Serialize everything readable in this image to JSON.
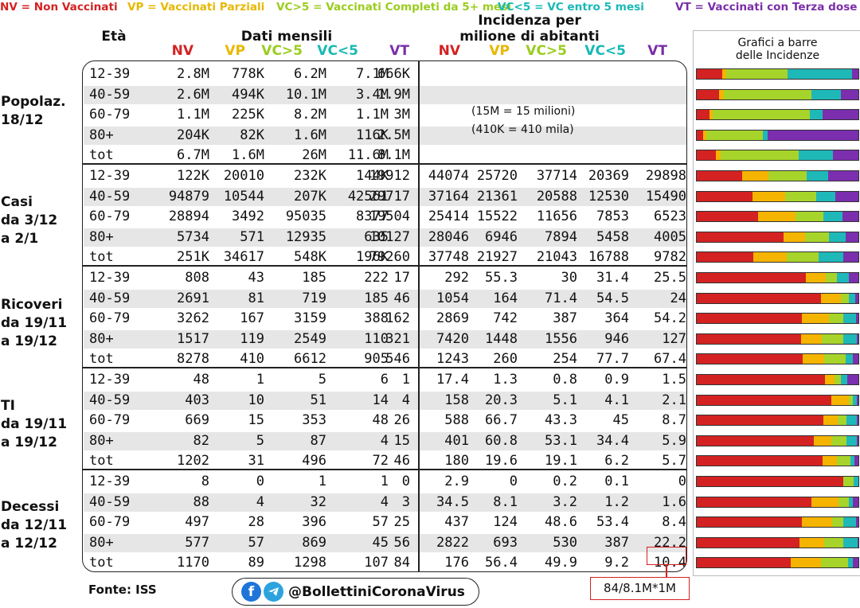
{
  "legend": {
    "nv": "NV = Non Vaccinati",
    "vp": "VP = Vaccinati Parziali",
    "vc5": "VC>5 = Vaccinati Completi da 5+ mesi",
    "vcl": "VC<5 = VC entro 5 mesi",
    "vt": "VT = Vaccinati con Terza dose"
  },
  "headers": {
    "eta": "Età",
    "dati_mensili": "Dati mensili",
    "incidenza_1": "Incidenza per",
    "incidenza_2": "milione di abitanti",
    "cols": [
      "NV",
      "VP",
      "VC>5",
      "VC<5",
      "VT"
    ],
    "bar_title_1": "Grafici a barre",
    "bar_title_2": "delle Incidenze"
  },
  "colors": {
    "nv": "#d42222",
    "vp": "#f5b400",
    "vc5": "#a7d42a",
    "vcl": "#1fb8b8",
    "vt": "#7b2fae"
  },
  "notes": {
    "n1": "(15M = 15 milioni)",
    "n2": "(410K = 410 mila)"
  },
  "groups": [
    {
      "label": [
        "Popolaz.",
        "18/12"
      ],
      "rows": [
        {
          "age": "12-39",
          "data": [
            "2.8M",
            "778K",
            "6.2M",
            "7.1M",
            "666K"
          ],
          "inc": [],
          "bar": [
            0.16,
            0.02,
            0.38,
            0.4,
            0.04
          ]
        },
        {
          "age": "40-59",
          "data": [
            "2.6M",
            "494K",
            "10.1M",
            "3.4M",
            "1.9M"
          ],
          "inc": [],
          "bar": [
            0.14,
            0.03,
            0.54,
            0.18,
            0.11
          ]
        },
        {
          "age": "60-79",
          "data": [
            "1.1M",
            "225K",
            "8.2M",
            "1.1M",
            "3M"
          ],
          "inc": [],
          "bar": [
            0.08,
            0.02,
            0.6,
            0.08,
            0.22
          ]
        },
        {
          "age": "80+",
          "data": [
            "204K",
            "82K",
            "1.6M",
            "116K",
            "2.5M"
          ],
          "inc": [],
          "bar": [
            0.04,
            0.02,
            0.35,
            0.03,
            0.56
          ]
        },
        {
          "age": "tot",
          "data": [
            "6.7M",
            "1.6M",
            "26M",
            "11.6M",
            "8.1M"
          ],
          "inc": [],
          "bar": [
            0.12,
            0.03,
            0.48,
            0.21,
            0.16
          ]
        }
      ]
    },
    {
      "label": [
        "Casi",
        "da 3/12",
        "a  2/1"
      ],
      "rows": [
        {
          "age": "12-39",
          "data": [
            "122K",
            "20010",
            "232K",
            "144K",
            "19912"
          ],
          "inc": [
            "44074",
            "25720",
            "37714",
            "20369",
            "29898"
          ],
          "bar": [
            44074,
            25720,
            37714,
            20369,
            29898
          ]
        },
        {
          "age": "40-59",
          "data": [
            "94879",
            "10544",
            "207K",
            "42561",
            "29717"
          ],
          "inc": [
            "37164",
            "21361",
            "20588",
            "12530",
            "15490"
          ],
          "bar": [
            37164,
            21361,
            20588,
            12530,
            15490
          ]
        },
        {
          "age": "60-79",
          "data": [
            "28894",
            "3492",
            "95035",
            "8377",
            "19504"
          ],
          "inc": [
            "25414",
            "15522",
            "11656",
            "7853",
            "6523"
          ],
          "bar": [
            25414,
            15522,
            11656,
            7853,
            6523
          ]
        },
        {
          "age": "80+",
          "data": [
            "5734",
            "571",
            "12935",
            "635",
            "10127"
          ],
          "inc": [
            "28046",
            "6946",
            "7894",
            "5458",
            "4005"
          ],
          "bar": [
            28046,
            6946,
            7894,
            5458,
            4005
          ]
        },
        {
          "age": "tot",
          "data": [
            "251K",
            "34617",
            "548K",
            "196K",
            "79260"
          ],
          "inc": [
            "37748",
            "21927",
            "21043",
            "16788",
            "9782"
          ],
          "bar": [
            37748,
            21927,
            21043,
            16788,
            9782
          ]
        }
      ]
    },
    {
      "label": [
        "Ricoveri",
        "da 19/11",
        "a   19/12"
      ],
      "rows": [
        {
          "age": "12-39",
          "data": [
            "808",
            "43",
            "185",
            "222",
            "17"
          ],
          "inc": [
            "292",
            "55.3",
            "30",
            "31.4",
            "25.5"
          ],
          "bar": [
            292,
            55.3,
            30,
            31.4,
            25.5
          ]
        },
        {
          "age": "40-59",
          "data": [
            "2691",
            "81",
            "719",
            "185",
            "46"
          ],
          "inc": [
            "1054",
            "164",
            "71.4",
            "54.5",
            "24"
          ],
          "bar": [
            1054,
            164,
            71.4,
            54.5,
            24
          ]
        },
        {
          "age": "60-79",
          "data": [
            "3262",
            "167",
            "3159",
            "388",
            "162"
          ],
          "inc": [
            "2869",
            "742",
            "387",
            "364",
            "54.2"
          ],
          "bar": [
            2869,
            742,
            387,
            364,
            54.2
          ]
        },
        {
          "age": "80+",
          "data": [
            "1517",
            "119",
            "2549",
            "110",
            "321"
          ],
          "inc": [
            "7420",
            "1448",
            "1556",
            "946",
            "127"
          ],
          "bar": [
            7420,
            1448,
            1556,
            946,
            127
          ]
        },
        {
          "age": "tot",
          "data": [
            "8278",
            "410",
            "6612",
            "905",
            "546"
          ],
          "inc": [
            "1243",
            "260",
            "254",
            "77.7",
            "67.4"
          ],
          "bar": [
            1243,
            260,
            254,
            77.7,
            67.4
          ]
        }
      ]
    },
    {
      "label": [
        "TI",
        "da 19/11",
        "a   19/12"
      ],
      "rows": [
        {
          "age": "12-39",
          "data": [
            "48",
            "1",
            "5",
            "6",
            "1"
          ],
          "inc": [
            "17.4",
            "1.3",
            "0.8",
            "0.9",
            "1.5"
          ],
          "bar": [
            17.4,
            1.3,
            0.8,
            0.9,
            1.5
          ]
        },
        {
          "age": "40-59",
          "data": [
            "403",
            "10",
            "51",
            "14",
            "4"
          ],
          "inc": [
            "158",
            "20.3",
            "5.1",
            "4.1",
            "2.1"
          ],
          "bar": [
            158,
            20.3,
            5.1,
            4.1,
            2.1
          ]
        },
        {
          "age": "60-79",
          "data": [
            "669",
            "15",
            "353",
            "48",
            "26"
          ],
          "inc": [
            "588",
            "66.7",
            "43.3",
            "45",
            "8.7"
          ],
          "bar": [
            588,
            66.7,
            43.3,
            45,
            8.7
          ]
        },
        {
          "age": "80+",
          "data": [
            "82",
            "5",
            "87",
            "4",
            "15"
          ],
          "inc": [
            "401",
            "60.8",
            "53.1",
            "34.4",
            "5.9"
          ],
          "bar": [
            401,
            60.8,
            53.1,
            34.4,
            5.9
          ]
        },
        {
          "age": "tot",
          "data": [
            "1202",
            "31",
            "496",
            "72",
            "46"
          ],
          "inc": [
            "180",
            "19.6",
            "19.1",
            "6.2",
            "5.7"
          ],
          "bar": [
            180,
            19.6,
            19.1,
            6.2,
            5.7
          ]
        }
      ]
    },
    {
      "label": [
        "Decessi",
        "da 12/11",
        "a   12/12"
      ],
      "rows": [
        {
          "age": "12-39",
          "data": [
            "8",
            "0",
            "1",
            "1",
            "0"
          ],
          "inc": [
            "2.9",
            "0",
            "0.2",
            "0.1",
            "0"
          ],
          "bar": [
            2.9,
            0,
            0.2,
            0.1,
            0
          ]
        },
        {
          "age": "40-59",
          "data": [
            "88",
            "4",
            "32",
            "4",
            "3"
          ],
          "inc": [
            "34.5",
            "8.1",
            "3.2",
            "1.2",
            "1.6"
          ],
          "bar": [
            34.5,
            8.1,
            3.2,
            1.2,
            1.6
          ]
        },
        {
          "age": "60-79",
          "data": [
            "497",
            "28",
            "396",
            "57",
            "25"
          ],
          "inc": [
            "437",
            "124",
            "48.6",
            "53.4",
            "8.4"
          ],
          "bar": [
            437,
            124,
            48.6,
            53.4,
            8.4
          ]
        },
        {
          "age": "80+",
          "data": [
            "577",
            "57",
            "869",
            "45",
            "56"
          ],
          "inc": [
            "2822",
            "693",
            "530",
            "387",
            "22.2"
          ],
          "bar": [
            2822,
            693,
            530,
            387,
            22.2
          ]
        },
        {
          "age": "tot",
          "data": [
            "1170",
            "89",
            "1298",
            "107",
            "84"
          ],
          "inc": [
            "176",
            "56.4",
            "49.9",
            "9.2",
            "10.4"
          ],
          "bar": [
            176,
            56.4,
            49.9,
            9.2,
            10.4
          ]
        }
      ]
    }
  ],
  "footer": {
    "fonte": "Fonte: ISS",
    "social_handle": "@BollettiniCoronaVirus",
    "facebook_glyph": "f",
    "formula": "84/8.1M*1M"
  }
}
